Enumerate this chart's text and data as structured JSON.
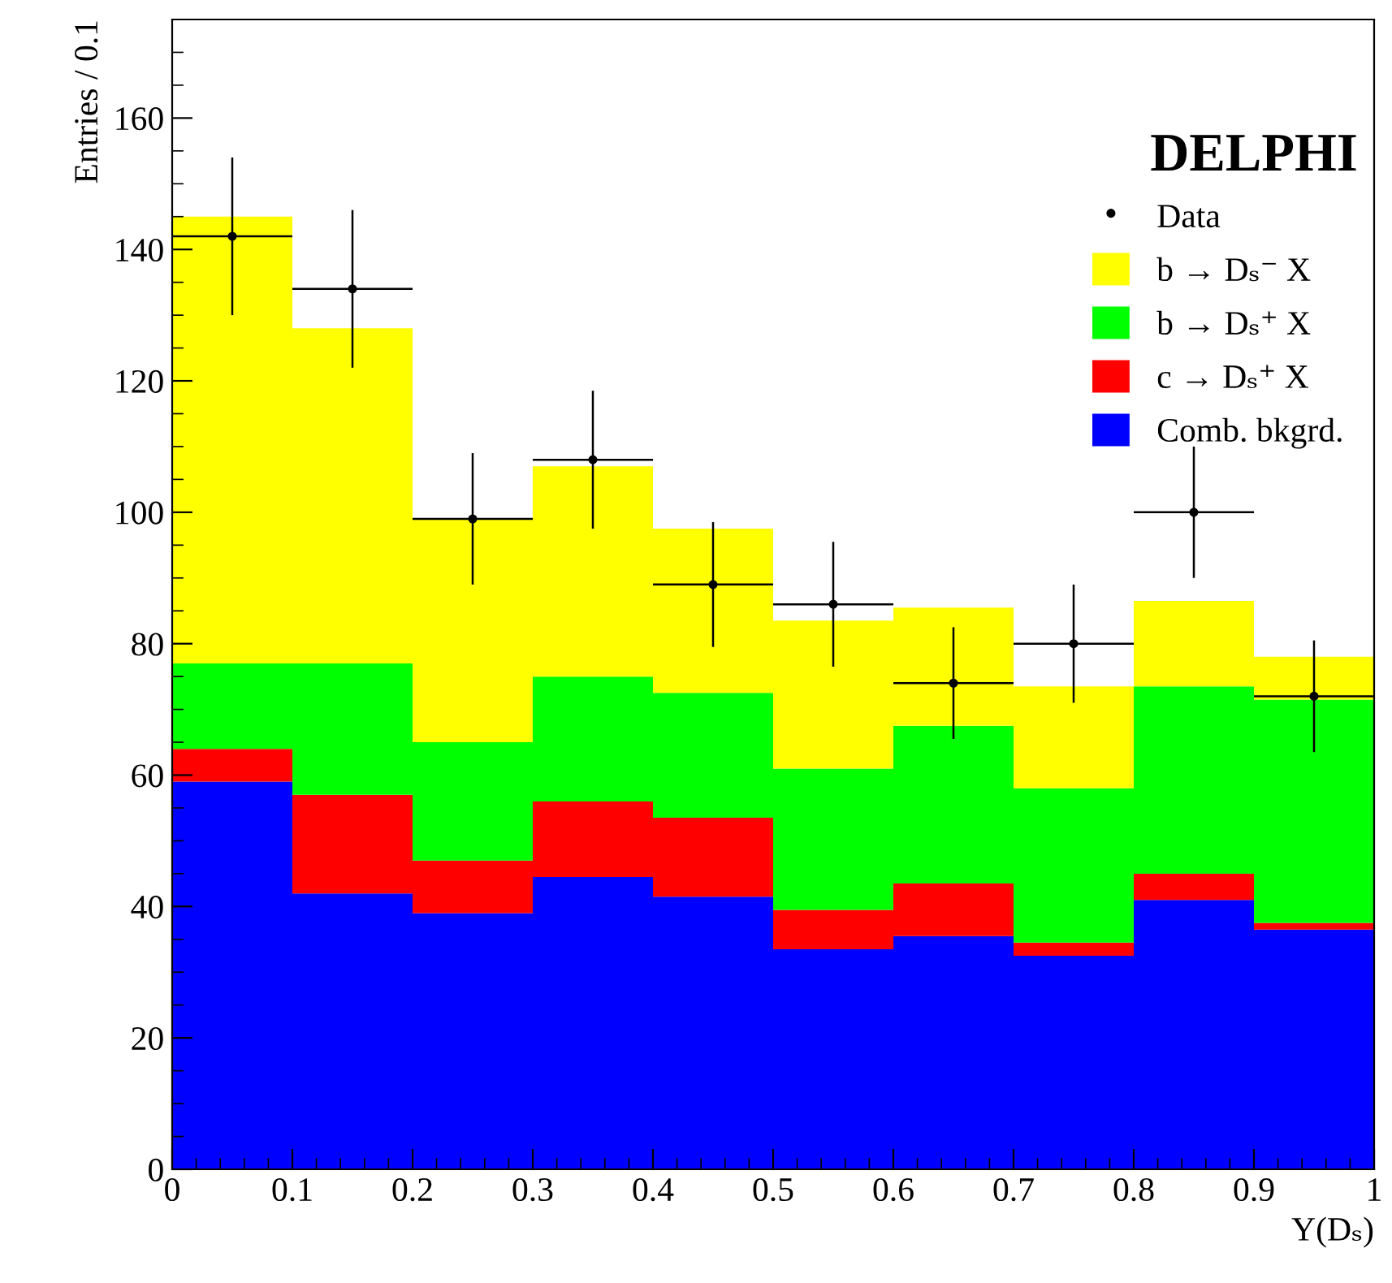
{
  "chart_data": {
    "type": "bar",
    "stacked": true,
    "xlabel": "Y(Dₛ)",
    "ylabel": "Entries / 0.1",
    "annotations": [
      "DELPHI"
    ],
    "x": [
      0.05,
      0.15,
      0.25,
      0.35,
      0.45,
      0.55,
      0.65,
      0.75,
      0.85,
      0.95
    ],
    "series": [
      {
        "name": "Comb. bkgrd.",
        "color": "#0000ff",
        "values": [
          59,
          42,
          39,
          44.5,
          41.5,
          33.5,
          35.5,
          32.5,
          41,
          36.5
        ]
      },
      {
        "name": "c → Dₛ⁺ X",
        "color": "#ff0000",
        "values": [
          5,
          15,
          8,
          11.5,
          12,
          6,
          8,
          2,
          4,
          1
        ]
      },
      {
        "name": "b → Dₛ⁺ X",
        "color": "#00ff00",
        "values": [
          13,
          20,
          18,
          19,
          19,
          21.5,
          24,
          23.5,
          28.5,
          34
        ]
      },
      {
        "name": "b → Dₛ⁻ X",
        "color": "#ffff00",
        "values": [
          68,
          51,
          34,
          32,
          25,
          22.5,
          18,
          15.5,
          13,
          6.5
        ]
      },
      {
        "name": "Data",
        "type": "scatter",
        "color": "#000000",
        "marker": "circle",
        "x": [
          0.05,
          0.15,
          0.25,
          0.35,
          0.45,
          0.55,
          0.65,
          0.75,
          0.85,
          0.95
        ],
        "values": [
          142,
          134,
          99,
          108,
          89,
          86,
          74,
          80,
          100,
          72
        ],
        "errors": [
          12,
          12,
          10,
          10.5,
          9.5,
          9.5,
          8.5,
          9,
          10,
          8.5
        ],
        "xerrors": [
          0.05,
          0.05,
          0.05,
          0.05,
          0.05,
          0.05,
          0.05,
          0.05,
          0.05,
          0.05
        ]
      }
    ],
    "xlim": [
      0,
      1
    ],
    "xticks": [
      0,
      0.1,
      0.2,
      0.3,
      0.4,
      0.5,
      0.6,
      0.7,
      0.8,
      0.9,
      1
    ],
    "ylim": [
      0,
      175
    ],
    "yticks": [
      0,
      20,
      40,
      60,
      80,
      100,
      120,
      140,
      160
    ],
    "legend": "top right"
  }
}
